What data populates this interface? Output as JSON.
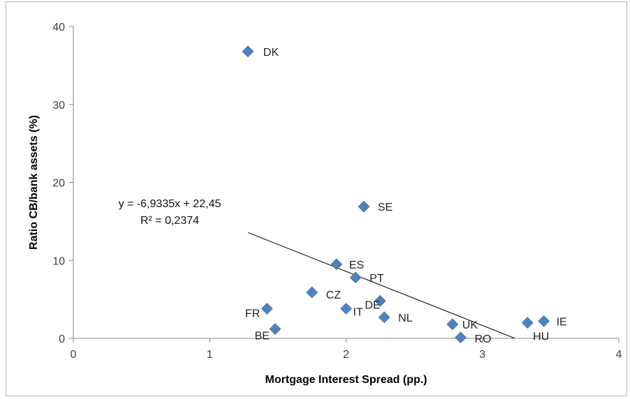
{
  "chart_data": {
    "type": "scatter",
    "title": "",
    "xlabel": "Mortgage Interest Spread (pp.)",
    "ylabel": "Ratio CB/bank assets (%)",
    "xlim": [
      0,
      4
    ],
    "ylim": [
      0,
      40
    ],
    "x_ticks": [
      "0",
      "1",
      "2",
      "3",
      "4"
    ],
    "y_ticks": [
      "0",
      "10",
      "20",
      "30",
      "40"
    ],
    "grid": false,
    "legend": "none",
    "marker_color": "#4F81BD",
    "trendline_color": "#000000",
    "points": [
      {
        "label": "DK",
        "x": 1.28,
        "y": 36.8
      },
      {
        "label": "SE",
        "x": 2.13,
        "y": 16.9
      },
      {
        "label": "ES",
        "x": 1.93,
        "y": 9.5
      },
      {
        "label": "PT",
        "x": 2.07,
        "y": 7.8
      },
      {
        "label": "CZ",
        "x": 1.75,
        "y": 5.9
      },
      {
        "label": "DE",
        "x": 2.25,
        "y": 4.8
      },
      {
        "label": "IT",
        "x": 2.0,
        "y": 3.8
      },
      {
        "label": "FR",
        "x": 1.42,
        "y": 3.8
      },
      {
        "label": "NL",
        "x": 2.28,
        "y": 2.7
      },
      {
        "label": "BE",
        "x": 1.48,
        "y": 1.2
      },
      {
        "label": "UK",
        "x": 2.78,
        "y": 1.8
      },
      {
        "label": "RO",
        "x": 2.84,
        "y": 0.1
      },
      {
        "label": "HU",
        "x": 3.33,
        "y": 2.0
      },
      {
        "label": "IE",
        "x": 3.45,
        "y": 2.2
      }
    ],
    "trendline": {
      "slope": -6.9335,
      "intercept": 22.45,
      "x_start": 1.28,
      "equation_text": "y = -6,9335x + 22,45",
      "r2_text": "R² = 0,2374"
    }
  }
}
